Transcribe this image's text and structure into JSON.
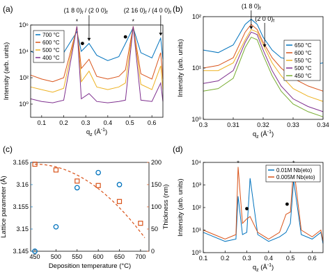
{
  "colors": {
    "c650": "#0072bd",
    "c600": "#d95319",
    "c550": "#edb120",
    "c500": "#edb120",
    "c450": "#77ac30",
    "c400": "#7e2f8e",
    "c700": "#0072bd",
    "blue": "#0072bd",
    "orange": "#d95319"
  },
  "chart_data": [
    {
      "panel": "(a)",
      "type": "line",
      "xlabel": "q_z (Å⁻¹)",
      "ylabel": "Intensity (arb. units)",
      "xlim": [
        0.05,
        0.65
      ],
      "ylim_log10": [
        -1,
        6
      ],
      "xticks": [
        "0.1",
        "0.2",
        "0.3",
        "0.4",
        "0.5",
        "0.6"
      ],
      "yticks": [
        "10⁰",
        "10²",
        "10⁴",
        "10⁶"
      ],
      "annotations": [
        "(1 8 0)_f / (2 0 0)_f",
        "(2 16 0)_f / (4 0 0)_f",
        "*",
        "*",
        "•",
        "•"
      ],
      "legend": {
        "position": "top-left",
        "entries": [
          "700 °C",
          "600 °C",
          "500 °C",
          "400 °C"
        ]
      },
      "series": [
        {
          "name": "700 °C",
          "x": [
            0.05,
            0.1,
            0.15,
            0.2,
            0.26,
            0.28,
            0.315,
            0.35,
            0.4,
            0.45,
            0.48,
            0.515,
            0.55,
            0.6,
            0.64,
            0.65
          ],
          "y_log10": [
            4.0,
            3.7,
            3.3,
            3.9,
            5.5,
            4.0,
            4.6,
            3.7,
            3.3,
            3.6,
            4.6,
            5.8,
            3.9,
            3.5,
            5.0,
            3.4
          ]
        },
        {
          "name": "600 °C",
          "x": [
            0.05,
            0.1,
            0.15,
            0.2,
            0.26,
            0.28,
            0.315,
            0.35,
            0.4,
            0.45,
            0.48,
            0.515,
            0.55,
            0.6,
            0.64,
            0.65
          ],
          "y_log10": [
            2.2,
            1.9,
            1.7,
            2.0,
            5.8,
            2.7,
            3.4,
            2.1,
            1.9,
            2.1,
            2.6,
            5.9,
            2.3,
            1.9,
            3.9,
            1.9
          ]
        },
        {
          "name": "500 °C",
          "x": [
            0.05,
            0.1,
            0.15,
            0.2,
            0.26,
            0.28,
            0.315,
            0.35,
            0.4,
            0.45,
            0.48,
            0.515,
            0.55,
            0.6,
            0.64,
            0.65
          ],
          "y_log10": [
            1.3,
            1.1,
            0.9,
            1.2,
            5.9,
            1.7,
            2.5,
            1.3,
            1.1,
            1.3,
            1.6,
            5.9,
            1.5,
            1.1,
            2.9,
            1.1
          ]
        },
        {
          "name": "400 °C",
          "x": [
            0.05,
            0.1,
            0.15,
            0.2,
            0.26,
            0.28,
            0.315,
            0.35,
            0.4,
            0.45,
            0.48,
            0.515,
            0.55,
            0.6,
            0.64,
            0.65
          ],
          "y_log10": [
            0.4,
            0.2,
            0.1,
            0.3,
            5.9,
            0.4,
            0.8,
            0.2,
            0.1,
            0.2,
            0.3,
            5.9,
            0.3,
            0.2,
            1.6,
            0.2
          ]
        }
      ]
    },
    {
      "panel": "(b)",
      "type": "line",
      "xlabel": "q_z (Å⁻¹)",
      "ylabel": "Intensity (arb. units)",
      "xlim": [
        0.3,
        0.34
      ],
      "ylim_log10": [
        0,
        2
      ],
      "xticks": [
        "0.3",
        "0.31",
        "0.32",
        "0.33",
        "0.34"
      ],
      "yticks": [
        "10⁰",
        "10¹",
        "10²"
      ],
      "annotations": [
        "(1 8 0)_f",
        "(2 0 0)_f"
      ],
      "legend": {
        "position": "right",
        "entries": [
          "650 °C",
          "600 °C",
          "550 °C",
          "500 °C",
          "450 °C"
        ]
      },
      "series": [
        {
          "name": "650 °C",
          "x": [
            0.3,
            0.305,
            0.31,
            0.314,
            0.316,
            0.318,
            0.32,
            0.323,
            0.326,
            0.33,
            0.335,
            0.34
          ],
          "y_log10": [
            1.35,
            1.3,
            1.45,
            1.85,
            1.95,
            1.85,
            1.6,
            1.35,
            1.2,
            1.15,
            1.05,
            1.1
          ]
        },
        {
          "name": "600 °C",
          "x": [
            0.3,
            0.305,
            0.31,
            0.314,
            0.316,
            0.318,
            0.32,
            0.323,
            0.326,
            0.33,
            0.335,
            0.34
          ],
          "y_log10": [
            1.0,
            1.05,
            1.2,
            1.7,
            1.85,
            1.75,
            1.5,
            1.2,
            1.0,
            0.8,
            0.65,
            0.55
          ]
        },
        {
          "name": "550 °C",
          "x": [
            0.3,
            0.305,
            0.31,
            0.314,
            0.316,
            0.318,
            0.32,
            0.323,
            0.326,
            0.33,
            0.335,
            0.34
          ],
          "y_log10": [
            0.95,
            0.95,
            1.1,
            1.55,
            1.75,
            1.7,
            1.45,
            1.1,
            0.85,
            0.6,
            0.45,
            0.35
          ]
        },
        {
          "name": "500 °C",
          "x": [
            0.3,
            0.305,
            0.31,
            0.314,
            0.316,
            0.318,
            0.32,
            0.323,
            0.326,
            0.33,
            0.335,
            0.34
          ],
          "y_log10": [
            0.7,
            0.75,
            0.95,
            1.5,
            1.7,
            1.65,
            1.35,
            0.95,
            0.65,
            0.4,
            0.25,
            0.15
          ]
        },
        {
          "name": "450 °C",
          "x": [
            0.3,
            0.305,
            0.31,
            0.314,
            0.316,
            0.318,
            0.32,
            0.323,
            0.326,
            0.33,
            0.335,
            0.34
          ],
          "y_log10": [
            0.55,
            0.6,
            0.8,
            1.4,
            1.6,
            1.55,
            1.25,
            0.85,
            0.55,
            0.3,
            0.15,
            0.05
          ]
        }
      ]
    },
    {
      "panel": "(c)",
      "type": "scatter",
      "xlabel": "Deposition temperature (°C)",
      "ylabel": "Lattice parameter (Å)",
      "ylabel_right": "Thickness (nm)",
      "xlim": [
        440,
        720
      ],
      "ylim": [
        3.145,
        3.165
      ],
      "ylim_right": [
        0,
        200
      ],
      "xticks": [
        "450",
        "500",
        "550",
        "600",
        "650",
        "700"
      ],
      "yticks": [
        "3.145",
        "3.15",
        "3.155",
        "3.16",
        "3.165"
      ],
      "yticks_right": [
        "0",
        "50",
        "100",
        "150",
        "200"
      ],
      "series": [
        {
          "name": "Lattice parameter (Å)",
          "axis": "left",
          "marker": "circle",
          "x": [
            450,
            500,
            550,
            600,
            650
          ],
          "y": [
            3.145,
            3.1505,
            3.1593,
            3.1627,
            3.16
          ]
        },
        {
          "name": "Thickness (nm)",
          "axis": "right",
          "marker": "square",
          "x": [
            450,
            500,
            550,
            600,
            650,
            700
          ],
          "y": [
            196,
            183,
            158,
            148,
            112,
            63
          ]
        }
      ]
    },
    {
      "panel": "(d)",
      "type": "line",
      "xlabel": "q_z (Å⁻¹)",
      "ylabel": "Intensity (arb. units)",
      "xlim": [
        0.1,
        0.65
      ],
      "ylim_log10": [
        0,
        4
      ],
      "xticks": [
        "0.1",
        "0.2",
        "0.3",
        "0.4",
        "0.5",
        "0.6"
      ],
      "yticks": [
        "10⁰",
        "10¹",
        "10²",
        "10³",
        "10⁴"
      ],
      "annotations": [
        "*",
        "*",
        "•",
        "•"
      ],
      "legend": {
        "position": "top-right",
        "entries": [
          "0.01M Nb(eto)",
          "0.005M Nb(eto)"
        ]
      },
      "series": [
        {
          "name": "0.01M Nb(eto)",
          "x": [
            0.1,
            0.15,
            0.2,
            0.25,
            0.26,
            0.28,
            0.3,
            0.315,
            0.35,
            0.4,
            0.45,
            0.48,
            0.5,
            0.515,
            0.55,
            0.6,
            0.64,
            0.65
          ],
          "y_log10": [
            0.9,
            0.7,
            0.5,
            0.6,
            2.5,
            0.8,
            0.9,
            3.3,
            0.8,
            0.5,
            0.7,
            0.9,
            1.3,
            3.2,
            0.8,
            0.6,
            0.9,
            0.4
          ]
        },
        {
          "name": "0.005M Nb(eto)",
          "x": [
            0.1,
            0.15,
            0.2,
            0.25,
            0.26,
            0.28,
            0.3,
            0.315,
            0.35,
            0.4,
            0.45,
            0.48,
            0.5,
            0.515,
            0.55,
            0.6,
            0.64,
            0.65
          ],
          "y_log10": [
            1.0,
            0.8,
            0.6,
            0.8,
            3.8,
            1.3,
            1.5,
            1.6,
            0.9,
            0.6,
            0.9,
            1.7,
            1.8,
            3.8,
            1.0,
            0.7,
            1.0,
            0.5
          ]
        }
      ]
    }
  ],
  "panels": {
    "a": {
      "label": "(a)",
      "xlabel_main": "q",
      "xlabel_sub": "z",
      "xlabel_unit": " (Å",
      "xlabel_sup": "-1",
      "xlabel_end": ")",
      "ylabel": "Intensity (arb. units)",
      "annot_left": "(1 8 0)",
      "annot_left_sub": "f",
      "annot_left_sep": " / (2 0 0)",
      "annot_left_sub2": "f",
      "annot_right": "(2 16 0)",
      "annot_right_sub": "f",
      "annot_right_sep": " / (4 0 0)",
      "annot_right_sub2": "f"
    },
    "b": {
      "label": "(b)",
      "annot_top": "(1 8 0)",
      "annot_top_sub": "f",
      "annot_right": "(2 0 0)",
      "annot_right_sub": "f"
    },
    "c": {
      "label": "(c)"
    },
    "d": {
      "label": "(d)"
    }
  }
}
